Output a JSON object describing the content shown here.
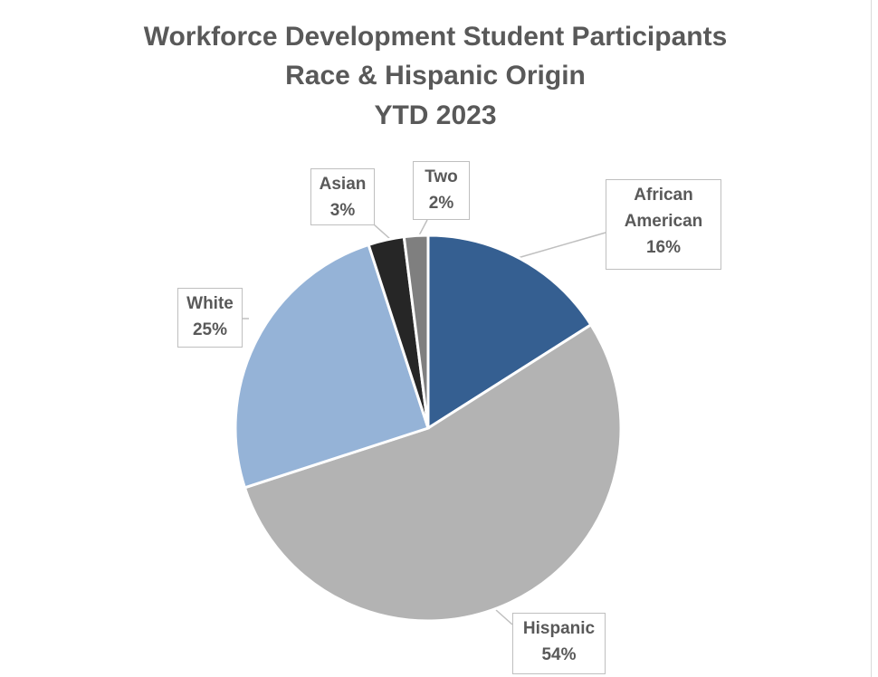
{
  "chart_data": {
    "type": "pie",
    "title": [
      "Workforce Development Student Participants",
      "Race & Hispanic Origin",
      "YTD 2023"
    ],
    "categories": [
      "African American",
      "Hispanic",
      "White",
      "Asian",
      "Two"
    ],
    "values": [
      16,
      54,
      25,
      3,
      2
    ],
    "value_labels": [
      "16%",
      "54%",
      "25%",
      "3%",
      "2%"
    ],
    "colors": [
      "#355f91",
      "#b3b3b3",
      "#95b3d7",
      "#262626",
      "#7f7f7f"
    ],
    "start": "12 o'clock, clockwise",
    "legend": "none"
  }
}
